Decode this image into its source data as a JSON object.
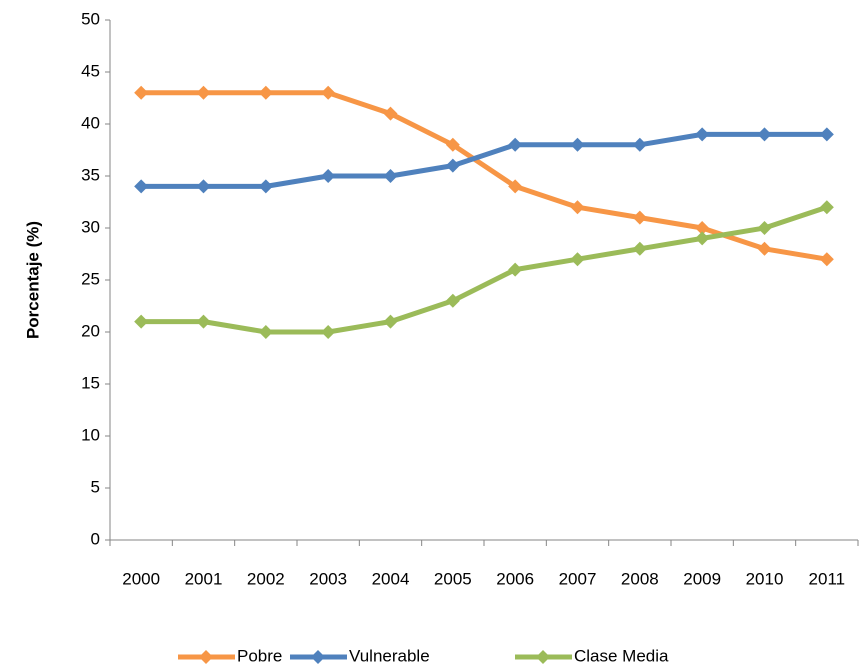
{
  "chart_data": {
    "type": "line",
    "y_label": "Porcentaje (%)",
    "categories": [
      "2000",
      "2001",
      "2002",
      "2003",
      "2004",
      "2005",
      "2006",
      "2007",
      "2008",
      "2009",
      "2010",
      "2011"
    ],
    "series": [
      {
        "name": "Pobre",
        "color": "#f79646",
        "values": [
          43,
          43,
          43,
          43,
          41,
          38,
          34,
          32,
          31,
          30,
          28,
          27
        ]
      },
      {
        "name": "Vulnerable",
        "color": "#4f81bd",
        "values": [
          34,
          34,
          34,
          35,
          35,
          36,
          38,
          38,
          38,
          39,
          39,
          39
        ]
      },
      {
        "name": "Clase Media",
        "color": "#9bbb59",
        "values": [
          21,
          21,
          20,
          20,
          21,
          23,
          26,
          27,
          28,
          29,
          30,
          32
        ]
      }
    ],
    "ylim": [
      0,
      50
    ],
    "yticks": [
      0,
      5,
      10,
      15,
      20,
      25,
      30,
      35,
      40,
      45,
      50
    ],
    "grid": false,
    "legend": "bottom"
  }
}
